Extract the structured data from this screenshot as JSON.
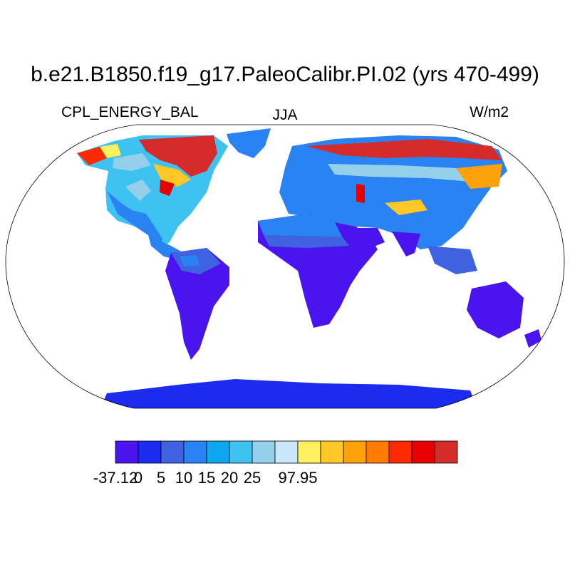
{
  "title": "b.e21.B1850.f19_g17.PaleoCalibr.PI.02 (yrs 470-499)",
  "subtitle_left": "CPL_ENERGY_BAL",
  "subtitle_center": "JJA",
  "subtitle_right": "W/m2",
  "colorbar": {
    "colors": [
      "#4a14f0",
      "#1b2bf0",
      "#3f63e0",
      "#2a83f2",
      "#0ea8f2",
      "#3ec2f2",
      "#94d0ec",
      "#c9e6fa",
      "#fff060",
      "#ffc826",
      "#ffa20a",
      "#ff7a00",
      "#ff2a00",
      "#e60000",
      "#d62b2b"
    ],
    "labels": [
      {
        "text": "-37.12",
        "boundary": 0
      },
      {
        "text": "0",
        "boundary": 1
      },
      {
        "text": "5",
        "boundary": 2
      },
      {
        "text": "10",
        "boundary": 3
      },
      {
        "text": "15",
        "boundary": 4
      },
      {
        "text": "20",
        "boundary": 5
      },
      {
        "text": "25",
        "boundary": 6
      },
      {
        "text": "97.95",
        "boundary": 8
      }
    ]
  }
}
